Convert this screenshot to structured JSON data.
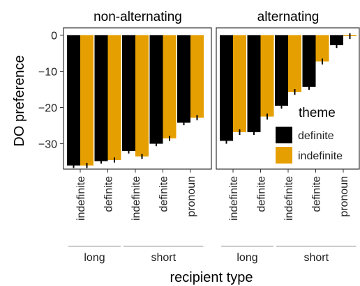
{
  "chart_data": {
    "type": "bar",
    "xlabel": "recipient type",
    "ylabel": "DO preference",
    "ylim": [
      -37,
      2
    ],
    "y_ticks": [
      0,
      -10,
      -20,
      -30
    ],
    "y_tick_labels": [
      "0",
      "−10",
      "−20",
      "−30"
    ],
    "categories": [
      "indefinite",
      "definite",
      "indefinite",
      "definite",
      "pronoun"
    ],
    "groups": [
      {
        "label": "long",
        "categories": [
          "indefinite",
          "definite"
        ]
      },
      {
        "label": "short",
        "categories": [
          "indefinite",
          "definite",
          "pronoun"
        ]
      }
    ],
    "legend": {
      "title": "theme",
      "position": "right-bottom",
      "entries": [
        {
          "label": "definite",
          "color": "#000000"
        },
        {
          "label": "indefinite",
          "color": "#E69F00"
        }
      ]
    },
    "facets": [
      {
        "label": "non-alternating",
        "series": [
          {
            "name": "definite",
            "color": "#000000",
            "values": [
              -36.0,
              -34.8,
              -32.0,
              -30.0,
              -24.2
            ],
            "errors": [
              0.7,
              0.7,
              0.7,
              0.7,
              0.7
            ]
          },
          {
            "name": "indefinite",
            "color": "#E69F00",
            "values": [
              -36.0,
              -34.5,
              -33.5,
              -28.5,
              -22.8
            ],
            "errors": [
              0.7,
              0.7,
              0.7,
              0.7,
              0.7
            ]
          }
        ]
      },
      {
        "label": "alternating",
        "series": [
          {
            "name": "definite",
            "color": "#000000",
            "values": [
              -29.2,
              -26.8,
              -19.5,
              -14.3,
              -2.8
            ],
            "errors": [
              0.8,
              0.8,
              0.8,
              0.8,
              0.8
            ]
          },
          {
            "name": "indefinite",
            "color": "#E69F00",
            "values": [
              -26.8,
              -22.5,
              -15.7,
              -7.3,
              -0.3
            ],
            "errors": [
              0.8,
              0.8,
              0.8,
              0.8,
              0.8
            ]
          }
        ]
      }
    ]
  }
}
